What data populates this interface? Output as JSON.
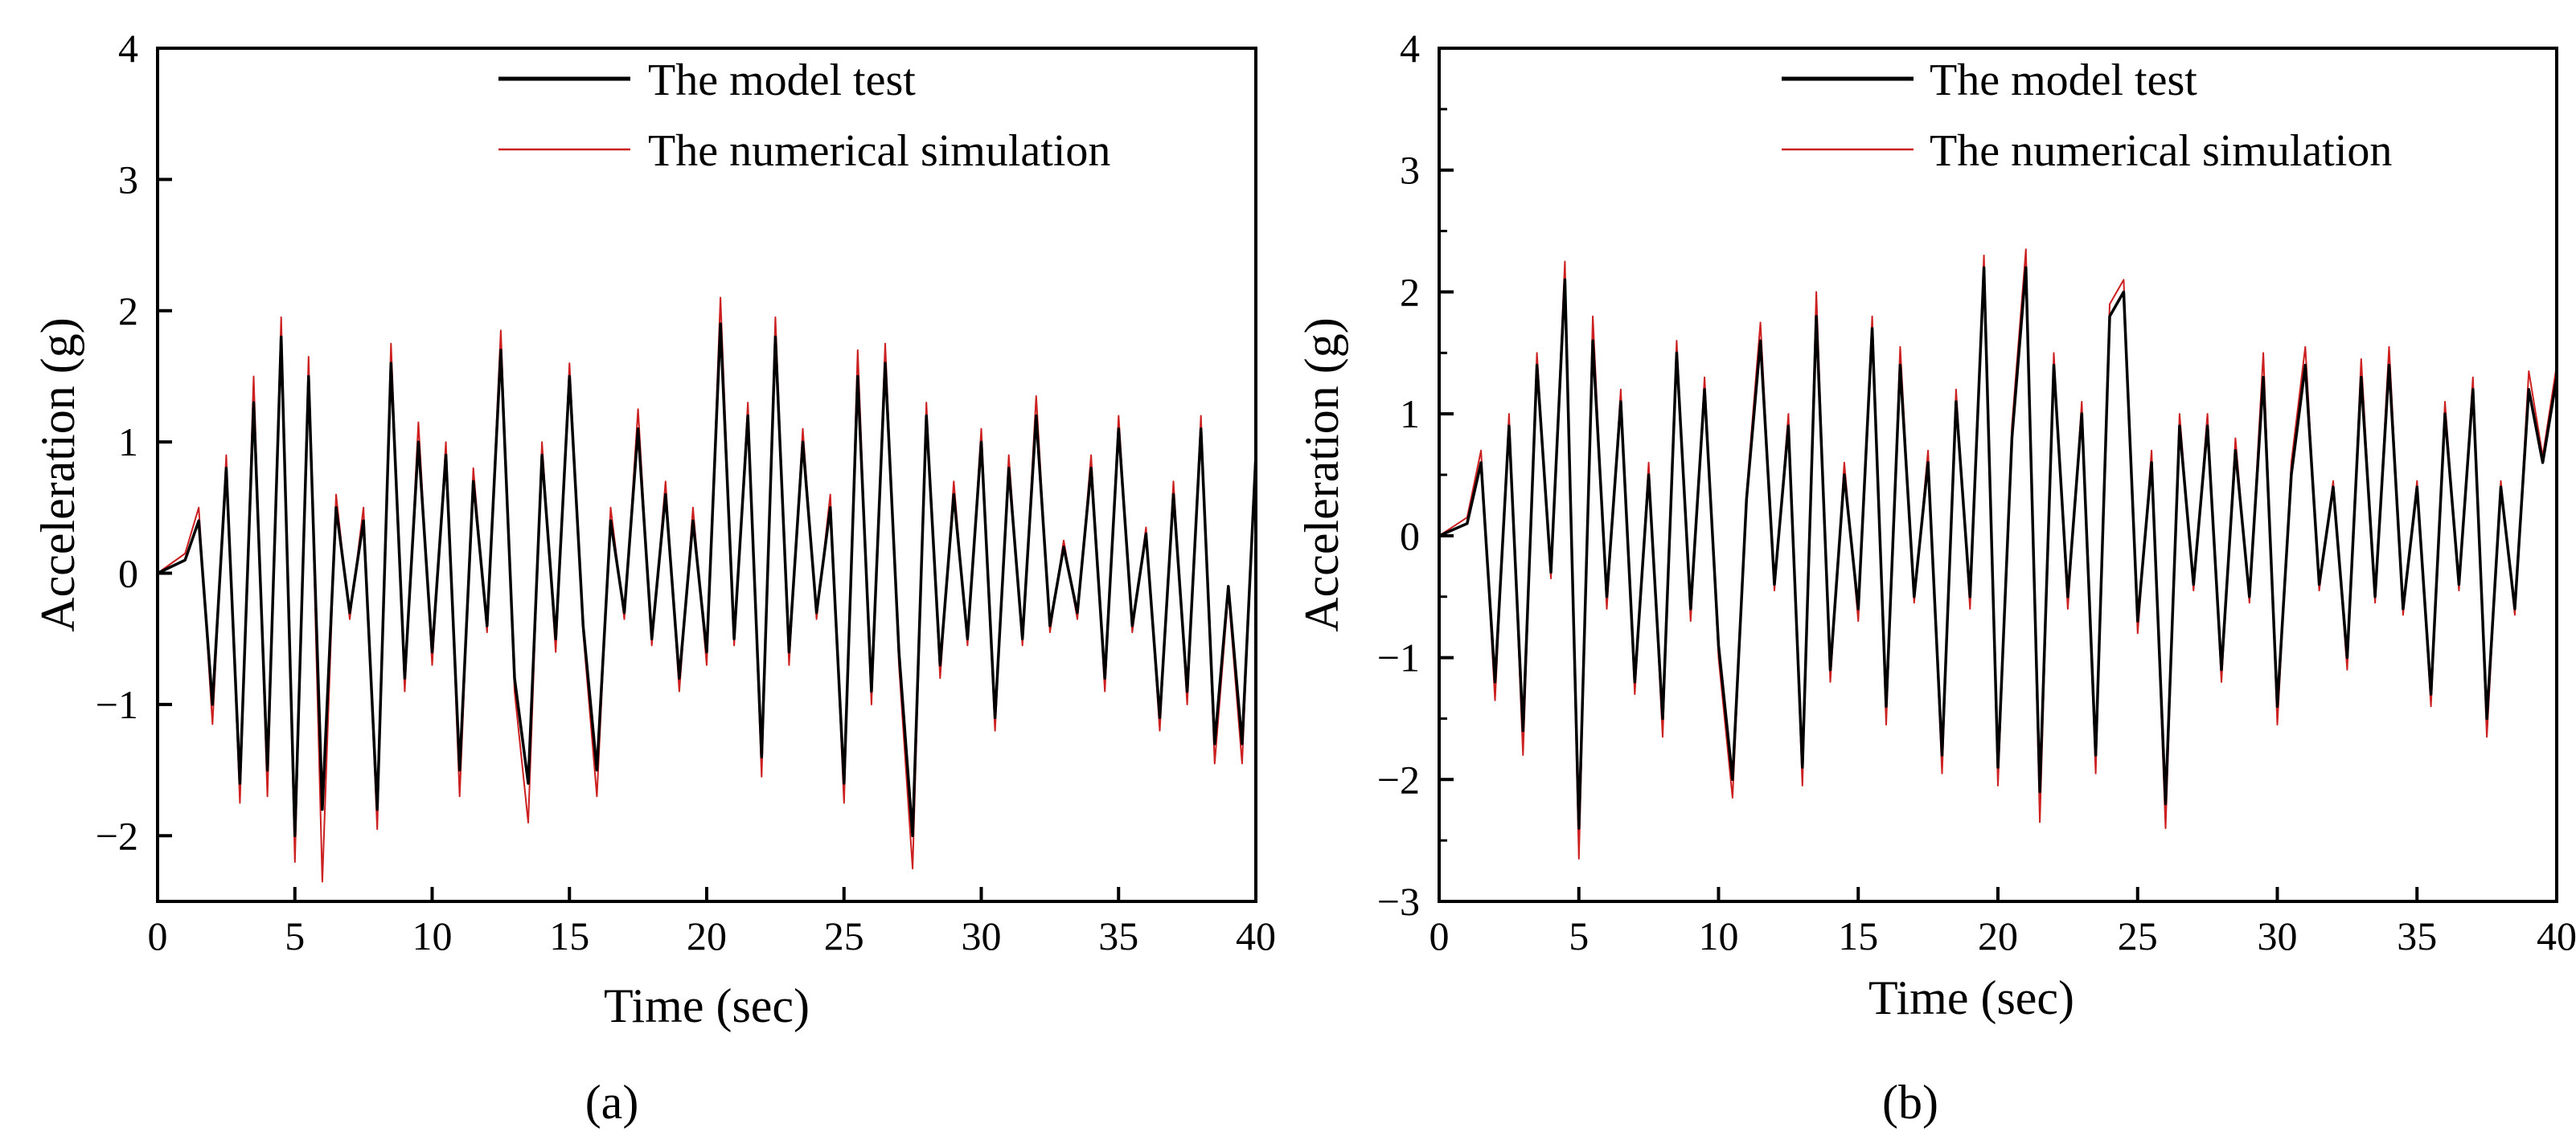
{
  "figure": {
    "panel_labels": [
      "(a)",
      "(b)"
    ],
    "colors": {
      "model_test": "#000000",
      "numerical_simulation": "#cc1f1f",
      "axes": "#000000"
    }
  },
  "chart_data": [
    {
      "type": "line",
      "panel": "(a)",
      "xlabel": "Time (sec)",
      "ylabel": "Acceleration (g)",
      "xlim": [
        0,
        40
      ],
      "ylim": [
        -2.5,
        4
      ],
      "xticks": [
        0,
        5,
        10,
        15,
        20,
        25,
        30,
        35,
        40
      ],
      "yticks": [
        -2,
        -1,
        0,
        1,
        2,
        3,
        4
      ],
      "grid": false,
      "legend": {
        "position": "top-right",
        "entries": [
          "The model test",
          "The numerical simulation"
        ]
      },
      "series": [
        {
          "name": "The model test",
          "x": [
            0,
            1.0,
            1.5,
            2.0,
            2.5,
            3.0,
            3.5,
            4.0,
            4.5,
            5.0,
            5.5,
            6.0,
            6.5,
            7.0,
            7.5,
            8.0,
            8.5,
            9.0,
            9.5,
            10.0,
            10.5,
            11.0,
            11.5,
            12.0,
            12.5,
            13.0,
            13.5,
            14.0,
            14.5,
            15.0,
            15.5,
            16.0,
            16.5,
            17.0,
            17.5,
            18.0,
            18.5,
            19.0,
            19.5,
            20.0,
            20.5,
            21.0,
            21.5,
            22.0,
            22.5,
            23.0,
            23.5,
            24.0,
            24.5,
            25.0,
            25.5,
            26.0,
            26.5,
            27.0,
            27.5,
            28.0,
            28.5,
            29.0,
            29.5,
            30.0,
            30.5,
            31.0,
            31.5,
            32.0,
            32.5,
            33.0,
            33.5,
            34.0,
            34.5,
            35.0,
            35.5,
            36.0,
            36.5,
            37.0,
            37.5,
            38.0,
            38.5,
            39.0,
            39.5,
            40.0
          ],
          "y": [
            0,
            0.1,
            0.4,
            -1.0,
            0.8,
            -1.6,
            1.3,
            -1.5,
            1.8,
            -2.0,
            1.5,
            -1.8,
            0.5,
            -0.3,
            0.4,
            -1.8,
            1.6,
            -0.8,
            1.0,
            -0.6,
            0.9,
            -1.5,
            0.7,
            -0.4,
            1.7,
            -0.8,
            -1.6,
            0.9,
            -0.5,
            1.5,
            -0.4,
            -1.5,
            0.4,
            -0.3,
            1.1,
            -0.5,
            0.6,
            -0.8,
            0.4,
            -0.6,
            1.9,
            -0.5,
            1.2,
            -1.4,
            1.8,
            -0.6,
            1.0,
            -0.3,
            0.5,
            -1.6,
            1.5,
            -0.9,
            1.6,
            -0.6,
            -2.0,
            1.2,
            -0.7,
            0.6,
            -0.5,
            1.0,
            -1.1,
            0.8,
            -0.5,
            1.2,
            -0.4,
            0.2,
            -0.3,
            0.8,
            -0.8,
            1.1,
            -0.4,
            0.3,
            -1.1,
            0.6,
            -0.9,
            1.1,
            -1.3,
            -0.1,
            -1.3,
            0.9
          ]
        },
        {
          "name": "The numerical simulation",
          "x": [
            0,
            1.0,
            1.5,
            2.0,
            2.5,
            3.0,
            3.5,
            4.0,
            4.5,
            5.0,
            5.5,
            6.0,
            6.5,
            7.0,
            7.5,
            8.0,
            8.5,
            9.0,
            9.5,
            10.0,
            10.5,
            11.0,
            11.5,
            12.0,
            12.5,
            13.0,
            13.5,
            14.0,
            14.5,
            15.0,
            15.5,
            16.0,
            16.5,
            17.0,
            17.5,
            18.0,
            18.5,
            19.0,
            19.5,
            20.0,
            20.5,
            21.0,
            21.5,
            22.0,
            22.5,
            23.0,
            23.5,
            24.0,
            24.5,
            25.0,
            25.5,
            26.0,
            26.5,
            27.0,
            27.5,
            28.0,
            28.5,
            29.0,
            29.5,
            30.0,
            30.5,
            31.0,
            31.5,
            32.0,
            32.5,
            33.0,
            33.5,
            34.0,
            34.5,
            35.0,
            35.5,
            36.0,
            36.5,
            37.0,
            37.5,
            38.0,
            38.5,
            39.0,
            39.5,
            40.0
          ],
          "y": [
            0,
            0.15,
            0.5,
            -1.15,
            0.9,
            -1.75,
            1.5,
            -1.7,
            1.95,
            -2.2,
            1.65,
            -2.35,
            0.6,
            -0.35,
            0.5,
            -1.95,
            1.75,
            -0.9,
            1.15,
            -0.7,
            1.0,
            -1.7,
            0.8,
            -0.45,
            1.85,
            -0.9,
            -1.9,
            1.0,
            -0.6,
            1.6,
            -0.45,
            -1.7,
            0.5,
            -0.35,
            1.25,
            -0.55,
            0.7,
            -0.9,
            0.5,
            -0.7,
            2.1,
            -0.55,
            1.3,
            -1.55,
            1.95,
            -0.7,
            1.1,
            -0.35,
            0.6,
            -1.75,
            1.7,
            -1.0,
            1.75,
            -0.7,
            -2.25,
            1.3,
            -0.8,
            0.7,
            -0.55,
            1.1,
            -1.2,
            0.9,
            -0.55,
            1.35,
            -0.45,
            0.25,
            -0.35,
            0.9,
            -0.9,
            1.2,
            -0.45,
            0.35,
            -1.2,
            0.7,
            -1.0,
            1.2,
            -1.45,
            -0.15,
            -1.45,
            1.0
          ]
        }
      ]
    },
    {
      "type": "line",
      "panel": "(b)",
      "xlabel": "Time (sec)",
      "ylabel": "Acceleration (g)",
      "xlim": [
        0,
        40
      ],
      "ylim": [
        -3,
        4
      ],
      "xticks": [
        0,
        5,
        10,
        15,
        20,
        25,
        30,
        35,
        40
      ],
      "yticks": [
        -3,
        -2,
        -1,
        0,
        1,
        2,
        3,
        4
      ],
      "grid": false,
      "legend": {
        "position": "top-right",
        "entries": [
          "The model test",
          "The numerical simulation"
        ]
      },
      "series": [
        {
          "name": "The model test",
          "x": [
            0,
            1.0,
            1.5,
            2.0,
            2.5,
            3.0,
            3.5,
            4.0,
            4.5,
            5.0,
            5.5,
            6.0,
            6.5,
            7.0,
            7.5,
            8.0,
            8.5,
            9.0,
            9.5,
            10.0,
            10.5,
            11.0,
            11.5,
            12.0,
            12.5,
            13.0,
            13.5,
            14.0,
            14.5,
            15.0,
            15.5,
            16.0,
            16.5,
            17.0,
            17.5,
            18.0,
            18.5,
            19.0,
            19.5,
            20.0,
            20.5,
            21.0,
            21.5,
            22.0,
            22.5,
            23.0,
            23.5,
            24.0,
            24.5,
            25.0,
            25.5,
            26.0,
            26.5,
            27.0,
            27.5,
            28.0,
            28.5,
            29.0,
            29.5,
            30.0,
            30.5,
            31.0,
            31.5,
            32.0,
            32.5,
            33.0,
            33.5,
            34.0,
            34.5,
            35.0,
            35.5,
            36.0,
            36.5,
            37.0,
            37.5,
            38.0,
            38.5,
            39.0,
            39.5,
            40.0
          ],
          "y": [
            0,
            0.1,
            0.6,
            -1.2,
            0.9,
            -1.6,
            1.4,
            -0.3,
            2.1,
            -2.4,
            1.6,
            -0.5,
            1.1,
            -1.2,
            0.5,
            -1.5,
            1.5,
            -0.6,
            1.2,
            -0.9,
            -2.0,
            0.3,
            1.6,
            -0.4,
            0.9,
            -1.9,
            1.8,
            -1.1,
            0.5,
            -0.6,
            1.7,
            -1.4,
            1.4,
            -0.5,
            0.6,
            -1.8,
            1.1,
            -0.5,
            2.2,
            -1.9,
            0.8,
            2.2,
            -2.1,
            1.4,
            -0.5,
            1.0,
            -1.8,
            1.8,
            2.0,
            -0.7,
            0.6,
            -2.2,
            0.9,
            -0.4,
            0.9,
            -1.1,
            0.7,
            -0.5,
            1.3,
            -1.4,
            0.5,
            1.4,
            -0.4,
            0.4,
            -1.0,
            1.3,
            -0.5,
            1.4,
            -0.6,
            0.4,
            -1.3,
            1.0,
            -0.4,
            1.2,
            -1.5,
            0.4,
            -0.6,
            1.2,
            0.6,
            1.3
          ]
        },
        {
          "name": "The numerical simulation",
          "x": [
            0,
            1.0,
            1.5,
            2.0,
            2.5,
            3.0,
            3.5,
            4.0,
            4.5,
            5.0,
            5.5,
            6.0,
            6.5,
            7.0,
            7.5,
            8.0,
            8.5,
            9.0,
            9.5,
            10.0,
            10.5,
            11.0,
            11.5,
            12.0,
            12.5,
            13.0,
            13.5,
            14.0,
            14.5,
            15.0,
            15.5,
            16.0,
            16.5,
            17.0,
            17.5,
            18.0,
            18.5,
            19.0,
            19.5,
            20.0,
            20.5,
            21.0,
            21.5,
            22.0,
            22.5,
            23.0,
            23.5,
            24.0,
            24.5,
            25.0,
            25.5,
            26.0,
            26.5,
            27.0,
            27.5,
            28.0,
            28.5,
            29.0,
            29.5,
            30.0,
            30.5,
            31.0,
            31.5,
            32.0,
            32.5,
            33.0,
            33.5,
            34.0,
            34.5,
            35.0,
            35.5,
            36.0,
            36.5,
            37.0,
            37.5,
            38.0,
            38.5,
            39.0,
            39.5,
            40.0
          ],
          "y": [
            0,
            0.15,
            0.7,
            -1.35,
            1.0,
            -1.8,
            1.5,
            -0.35,
            2.25,
            -2.65,
            1.8,
            -0.6,
            1.2,
            -1.3,
            0.6,
            -1.65,
            1.6,
            -0.7,
            1.3,
            -1.0,
            -2.15,
            0.35,
            1.75,
            -0.45,
            1.0,
            -2.05,
            2.0,
            -1.2,
            0.6,
            -0.7,
            1.8,
            -1.55,
            1.55,
            -0.55,
            0.7,
            -1.95,
            1.2,
            -0.6,
            2.3,
            -2.05,
            0.9,
            2.35,
            -2.35,
            1.5,
            -0.6,
            1.1,
            -1.95,
            1.9,
            2.1,
            -0.8,
            0.7,
            -2.4,
            1.0,
            -0.45,
            1.0,
            -1.2,
            0.8,
            -0.55,
            1.5,
            -1.55,
            0.6,
            1.55,
            -0.45,
            0.45,
            -1.1,
            1.45,
            -0.55,
            1.55,
            -0.65,
            0.45,
            -1.4,
            1.1,
            -0.45,
            1.3,
            -1.65,
            0.45,
            -0.65,
            1.35,
            0.65,
            1.4
          ]
        }
      ]
    }
  ]
}
